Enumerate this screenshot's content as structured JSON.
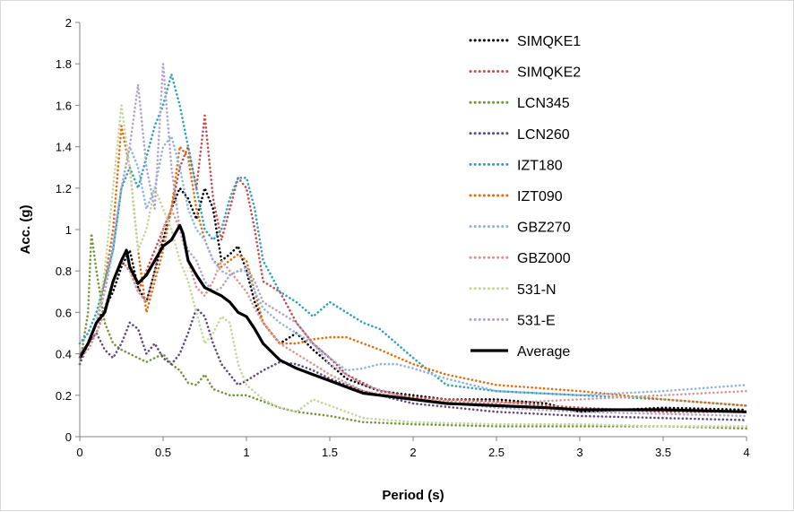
{
  "chart_data": {
    "type": "line",
    "title": "",
    "xlabel": "Period (s)",
    "ylabel": "Acc. (g)",
    "xlim": [
      0,
      4
    ],
    "ylim": [
      0,
      2
    ],
    "xticks": [
      0,
      0.5,
      1,
      1.5,
      2,
      2.5,
      3,
      3.5,
      4
    ],
    "yticks": [
      0,
      0.2,
      0.4,
      0.6,
      0.8,
      1,
      1.2,
      1.4,
      1.6,
      1.8,
      2
    ],
    "xtick_labels": [
      "0",
      "0.5",
      "1",
      "1.5",
      "2",
      "2.5",
      "3",
      "3.5",
      "4"
    ],
    "ytick_labels": [
      "0",
      "0.2",
      "0.4",
      "0.6",
      "0.8",
      "1",
      "1.2",
      "1.4",
      "1.6",
      "1.8",
      "2"
    ],
    "grid": false,
    "legend_position": "top-right",
    "series": [
      {
        "name": "SIMQKE1",
        "color": "#000000",
        "style": "dotted",
        "x": [
          0,
          0.05,
          0.1,
          0.15,
          0.2,
          0.25,
          0.3,
          0.35,
          0.4,
          0.45,
          0.5,
          0.55,
          0.6,
          0.65,
          0.7,
          0.75,
          0.8,
          0.85,
          0.9,
          0.95,
          1.0,
          1.05,
          1.1,
          1.2,
          1.3,
          1.4,
          1.5,
          1.6,
          1.8,
          2.0,
          2.2,
          2.5,
          2.8,
          3.0,
          3.5,
          4.0
        ],
        "values": [
          0.4,
          0.45,
          0.55,
          0.62,
          0.7,
          0.82,
          0.9,
          0.72,
          0.65,
          0.8,
          0.95,
          1.1,
          1.2,
          1.15,
          1.05,
          1.2,
          1.1,
          0.85,
          0.88,
          0.92,
          0.8,
          0.65,
          0.55,
          0.45,
          0.5,
          0.42,
          0.35,
          0.28,
          0.22,
          0.2,
          0.18,
          0.18,
          0.16,
          0.12,
          0.14,
          0.13
        ]
      },
      {
        "name": "SIMQKE2",
        "color": "#c0504d",
        "style": "dotted",
        "x": [
          0,
          0.05,
          0.1,
          0.15,
          0.2,
          0.25,
          0.3,
          0.35,
          0.4,
          0.45,
          0.5,
          0.55,
          0.6,
          0.65,
          0.7,
          0.75,
          0.8,
          0.85,
          0.9,
          0.95,
          1.0,
          1.05,
          1.1,
          1.2,
          1.3,
          1.4,
          1.5,
          1.6,
          1.8,
          2.0,
          2.2,
          2.5,
          2.8,
          3.0,
          3.5,
          4.0
        ],
        "values": [
          0.38,
          0.45,
          0.5,
          0.62,
          0.75,
          0.85,
          0.8,
          0.7,
          0.8,
          0.9,
          1.0,
          1.1,
          1.3,
          1.4,
          1.2,
          1.55,
          1.15,
          0.95,
          1.1,
          1.25,
          1.2,
          1.0,
          0.75,
          0.7,
          0.55,
          0.45,
          0.38,
          0.3,
          0.22,
          0.19,
          0.18,
          0.17,
          0.15,
          0.14,
          0.12,
          0.12
        ]
      },
      {
        "name": "LCN345",
        "color": "#77933c",
        "style": "dotted",
        "x": [
          0,
          0.05,
          0.07,
          0.1,
          0.15,
          0.2,
          0.25,
          0.3,
          0.35,
          0.4,
          0.45,
          0.5,
          0.55,
          0.6,
          0.65,
          0.7,
          0.75,
          0.8,
          0.9,
          1.0,
          1.1,
          1.2,
          1.3,
          1.5,
          1.7,
          2.0,
          2.5,
          3.0,
          3.5,
          4.0
        ],
        "values": [
          0.35,
          0.6,
          0.98,
          0.8,
          0.55,
          0.45,
          0.42,
          0.4,
          0.38,
          0.36,
          0.38,
          0.4,
          0.35,
          0.32,
          0.26,
          0.25,
          0.3,
          0.23,
          0.2,
          0.2,
          0.17,
          0.14,
          0.12,
          0.1,
          0.07,
          0.06,
          0.05,
          0.05,
          0.05,
          0.04
        ]
      },
      {
        "name": "LCN260",
        "color": "#604a7b",
        "style": "dotted",
        "x": [
          0,
          0.05,
          0.1,
          0.15,
          0.2,
          0.25,
          0.3,
          0.35,
          0.4,
          0.45,
          0.5,
          0.55,
          0.6,
          0.65,
          0.7,
          0.75,
          0.8,
          0.85,
          0.9,
          0.95,
          1.0,
          1.1,
          1.2,
          1.3,
          1.4,
          1.5,
          1.7,
          2.0,
          2.5,
          3.0,
          3.5,
          4.0
        ],
        "values": [
          0.35,
          0.45,
          0.5,
          0.42,
          0.38,
          0.45,
          0.55,
          0.52,
          0.4,
          0.45,
          0.38,
          0.35,
          0.4,
          0.5,
          0.62,
          0.58,
          0.45,
          0.35,
          0.3,
          0.25,
          0.27,
          0.32,
          0.36,
          0.35,
          0.32,
          0.28,
          0.22,
          0.16,
          0.12,
          0.1,
          0.09,
          0.08
        ]
      },
      {
        "name": "IZT180",
        "color": "#31a0b8",
        "style": "dotted",
        "x": [
          0,
          0.05,
          0.1,
          0.15,
          0.2,
          0.25,
          0.3,
          0.35,
          0.4,
          0.45,
          0.5,
          0.55,
          0.6,
          0.65,
          0.7,
          0.75,
          0.8,
          0.85,
          0.9,
          0.95,
          1.0,
          1.05,
          1.1,
          1.2,
          1.3,
          1.4,
          1.5,
          1.6,
          1.7,
          1.8,
          2.0,
          2.2,
          2.5,
          3.0,
          3.5,
          4.0
        ],
        "values": [
          0.45,
          0.5,
          0.6,
          0.75,
          0.9,
          1.2,
          1.3,
          1.2,
          1.35,
          1.5,
          1.6,
          1.75,
          1.6,
          1.4,
          1.2,
          1.0,
          0.95,
          1.0,
          1.15,
          1.25,
          1.25,
          1.1,
          0.85,
          0.7,
          0.65,
          0.58,
          0.65,
          0.6,
          0.55,
          0.52,
          0.38,
          0.25,
          0.22,
          0.2,
          0.18,
          0.15
        ]
      },
      {
        "name": "IZT090",
        "color": "#e46c0a",
        "style": "dotted",
        "x": [
          0,
          0.05,
          0.1,
          0.15,
          0.2,
          0.25,
          0.3,
          0.35,
          0.4,
          0.45,
          0.5,
          0.55,
          0.6,
          0.65,
          0.7,
          0.75,
          0.8,
          0.85,
          0.9,
          0.95,
          1.0,
          1.05,
          1.1,
          1.2,
          1.3,
          1.4,
          1.5,
          1.6,
          1.8,
          2.0,
          2.2,
          2.5,
          3.0,
          3.5,
          4.0
        ],
        "values": [
          0.4,
          0.45,
          0.55,
          0.75,
          1.0,
          1.5,
          1.3,
          0.9,
          0.6,
          0.75,
          0.9,
          1.1,
          1.4,
          1.35,
          1.1,
          0.95,
          0.85,
          0.82,
          0.85,
          0.88,
          0.85,
          0.7,
          0.55,
          0.45,
          0.45,
          0.47,
          0.48,
          0.48,
          0.42,
          0.35,
          0.3,
          0.25,
          0.22,
          0.18,
          0.15
        ]
      },
      {
        "name": "GBZ270",
        "color": "#8eb4e3",
        "style": "dotted",
        "x": [
          0,
          0.05,
          0.1,
          0.15,
          0.2,
          0.25,
          0.3,
          0.35,
          0.4,
          0.45,
          0.5,
          0.55,
          0.6,
          0.65,
          0.7,
          0.75,
          0.8,
          0.85,
          0.9,
          0.95,
          1.0,
          1.05,
          1.1,
          1.2,
          1.3,
          1.4,
          1.5,
          1.6,
          1.7,
          1.8,
          1.9,
          2.0,
          2.2,
          2.5,
          3.0,
          3.5,
          4.0
        ],
        "values": [
          0.4,
          0.45,
          0.55,
          0.7,
          0.9,
          1.2,
          1.4,
          1.3,
          1.1,
          1.2,
          1.4,
          1.45,
          1.3,
          1.1,
          1.0,
          0.95,
          0.85,
          0.8,
          0.78,
          0.8,
          0.8,
          0.7,
          0.62,
          0.55,
          0.5,
          0.45,
          0.38,
          0.32,
          0.33,
          0.35,
          0.35,
          0.33,
          0.28,
          0.22,
          0.2,
          0.22,
          0.25
        ]
      },
      {
        "name": "GBZ000",
        "color": "#d99594",
        "style": "dotted",
        "x": [
          0,
          0.05,
          0.1,
          0.15,
          0.2,
          0.25,
          0.3,
          0.35,
          0.4,
          0.45,
          0.5,
          0.55,
          0.6,
          0.65,
          0.7,
          0.75,
          0.8,
          0.85,
          0.9,
          0.95,
          1.0,
          1.05,
          1.1,
          1.2,
          1.3,
          1.4,
          1.5,
          1.7,
          2.0,
          2.5,
          3.0,
          3.5,
          4.0
        ],
        "values": [
          0.38,
          0.42,
          0.5,
          0.6,
          0.75,
          0.85,
          0.8,
          0.7,
          0.65,
          0.8,
          1.0,
          1.1,
          1.0,
          0.85,
          0.72,
          0.68,
          0.75,
          0.85,
          0.8,
          0.75,
          0.7,
          0.62,
          0.55,
          0.45,
          0.4,
          0.35,
          0.3,
          0.22,
          0.18,
          0.16,
          0.18,
          0.2,
          0.22
        ]
      },
      {
        "name": "531-N",
        "color": "#c3d69b",
        "style": "dotted",
        "x": [
          0,
          0.05,
          0.1,
          0.15,
          0.2,
          0.25,
          0.3,
          0.35,
          0.4,
          0.45,
          0.5,
          0.55,
          0.6,
          0.65,
          0.7,
          0.75,
          0.8,
          0.85,
          0.9,
          0.95,
          1.0,
          1.1,
          1.2,
          1.3,
          1.4,
          1.5,
          1.7,
          2.0,
          2.5,
          3.0,
          3.5,
          4.0
        ],
        "values": [
          0.38,
          0.45,
          0.55,
          0.8,
          1.2,
          1.6,
          1.3,
          0.9,
          1.0,
          1.2,
          1.1,
          1.0,
          0.85,
          0.75,
          0.6,
          0.45,
          0.5,
          0.58,
          0.55,
          0.35,
          0.25,
          0.18,
          0.14,
          0.12,
          0.18,
          0.15,
          0.09,
          0.07,
          0.06,
          0.06,
          0.05,
          0.05
        ]
      },
      {
        "name": "531-E",
        "color": "#b3a2c7",
        "style": "dotted",
        "x": [
          0,
          0.05,
          0.1,
          0.15,
          0.2,
          0.25,
          0.3,
          0.35,
          0.4,
          0.45,
          0.5,
          0.55,
          0.6,
          0.65,
          0.7,
          0.75,
          0.8,
          0.85,
          0.9,
          0.95,
          1.0,
          1.05,
          1.1,
          1.2,
          1.3,
          1.4,
          1.5,
          1.7,
          2.0,
          2.5,
          3.0,
          3.5,
          4.0
        ],
        "values": [
          0.4,
          0.45,
          0.55,
          0.7,
          0.95,
          1.2,
          1.4,
          1.7,
          1.3,
          1.1,
          1.8,
          1.3,
          1.0,
          0.9,
          0.85,
          0.75,
          0.7,
          0.72,
          0.78,
          0.8,
          0.82,
          0.75,
          0.65,
          0.6,
          0.55,
          0.45,
          0.35,
          0.25,
          0.18,
          0.14,
          0.12,
          0.11,
          0.1
        ]
      },
      {
        "name": "Average",
        "color": "#000000",
        "style": "solid",
        "x": [
          0,
          0.05,
          0.1,
          0.15,
          0.2,
          0.25,
          0.28,
          0.3,
          0.35,
          0.4,
          0.45,
          0.5,
          0.55,
          0.6,
          0.62,
          0.65,
          0.7,
          0.75,
          0.8,
          0.85,
          0.9,
          0.95,
          1.0,
          1.05,
          1.1,
          1.2,
          1.3,
          1.4,
          1.5,
          1.6,
          1.7,
          1.8,
          2.0,
          2.2,
          2.5,
          2.8,
          3.0,
          3.5,
          4.0
        ],
        "values": [
          0.38,
          0.45,
          0.55,
          0.6,
          0.75,
          0.85,
          0.9,
          0.82,
          0.74,
          0.78,
          0.85,
          0.92,
          0.95,
          1.02,
          0.98,
          0.85,
          0.78,
          0.72,
          0.7,
          0.68,
          0.65,
          0.6,
          0.58,
          0.52,
          0.45,
          0.37,
          0.33,
          0.3,
          0.27,
          0.24,
          0.21,
          0.2,
          0.18,
          0.16,
          0.15,
          0.14,
          0.13,
          0.13,
          0.12
        ]
      }
    ]
  }
}
